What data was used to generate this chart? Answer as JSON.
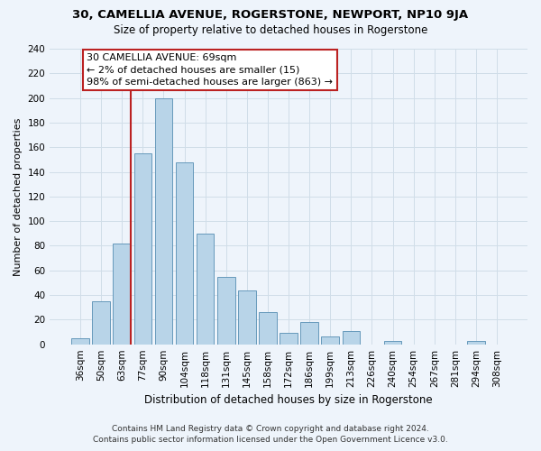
{
  "title": "30, CAMELLIA AVENUE, ROGERSTONE, NEWPORT, NP10 9JA",
  "subtitle": "Size of property relative to detached houses in Rogerstone",
  "xlabel": "Distribution of detached houses by size in Rogerstone",
  "ylabel": "Number of detached properties",
  "categories": [
    "36sqm",
    "50sqm",
    "63sqm",
    "77sqm",
    "90sqm",
    "104sqm",
    "118sqm",
    "131sqm",
    "145sqm",
    "158sqm",
    "172sqm",
    "186sqm",
    "199sqm",
    "213sqm",
    "226sqm",
    "240sqm",
    "254sqm",
    "267sqm",
    "281sqm",
    "294sqm",
    "308sqm"
  ],
  "values": [
    5,
    35,
    82,
    155,
    200,
    148,
    90,
    55,
    44,
    26,
    9,
    18,
    6,
    11,
    0,
    3,
    0,
    0,
    0,
    3,
    0
  ],
  "bar_color": "#b8d4e8",
  "bar_edge_color": "#6699bb",
  "grid_color": "#d0dde8",
  "vline_x_index": 2,
  "vline_color": "#bb2222",
  "annotation_line1": "30 CAMELLIA AVENUE: 69sqm",
  "annotation_line2": "← 2% of detached houses are smaller (15)",
  "annotation_line3": "98% of semi-detached houses are larger (863) →",
  "annotation_box_color": "white",
  "annotation_box_edge_color": "#bb2222",
  "ylim": [
    0,
    240
  ],
  "yticks": [
    0,
    20,
    40,
    60,
    80,
    100,
    120,
    140,
    160,
    180,
    200,
    220,
    240
  ],
  "footer_line1": "Contains HM Land Registry data © Crown copyright and database right 2024.",
  "footer_line2": "Contains public sector information licensed under the Open Government Licence v3.0.",
  "bg_color": "#eef4fb",
  "title_fontsize": 9.5,
  "subtitle_fontsize": 8.5,
  "xlabel_fontsize": 8.5,
  "ylabel_fontsize": 8,
  "tick_fontsize": 7.5,
  "annot_fontsize": 8
}
